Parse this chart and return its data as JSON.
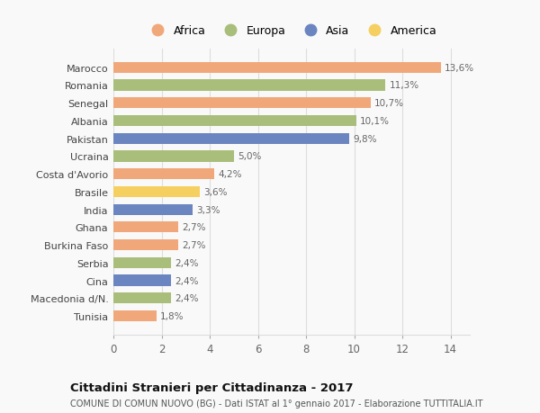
{
  "countries": [
    "Tunisia",
    "Macedonia d/N.",
    "Cina",
    "Serbia",
    "Burkina Faso",
    "Ghana",
    "India",
    "Brasile",
    "Costa d'Avorio",
    "Ucraina",
    "Pakistan",
    "Albania",
    "Senegal",
    "Romania",
    "Marocco"
  ],
  "values": [
    1.8,
    2.4,
    2.4,
    2.4,
    2.7,
    2.7,
    3.3,
    3.6,
    4.2,
    5.0,
    9.8,
    10.1,
    10.7,
    11.3,
    13.6
  ],
  "labels": [
    "1,8%",
    "2,4%",
    "2,4%",
    "2,4%",
    "2,7%",
    "2,7%",
    "3,3%",
    "3,6%",
    "4,2%",
    "5,0%",
    "9,8%",
    "10,1%",
    "10,7%",
    "11,3%",
    "13,6%"
  ],
  "continents": [
    "Africa",
    "Europa",
    "Asia",
    "Europa",
    "Africa",
    "Africa",
    "Asia",
    "America",
    "Africa",
    "Europa",
    "Asia",
    "Europa",
    "Africa",
    "Europa",
    "Africa"
  ],
  "colors": {
    "Africa": "#F0A87A",
    "Europa": "#A8BE7A",
    "Asia": "#6B85C0",
    "America": "#F5D060"
  },
  "xlim": [
    0,
    14.8
  ],
  "xticks": [
    0,
    2,
    4,
    6,
    8,
    10,
    12,
    14
  ],
  "title": "Cittadini Stranieri per Cittadinanza - 2017",
  "subtitle": "COMUNE DI COMUN NUOVO (BG) - Dati ISTAT al 1° gennaio 2017 - Elaborazione TUTTITALIA.IT",
  "background_color": "#f9f9f9",
  "grid_color": "#dddddd",
  "legend_order": [
    "Africa",
    "Europa",
    "Asia",
    "America"
  ]
}
